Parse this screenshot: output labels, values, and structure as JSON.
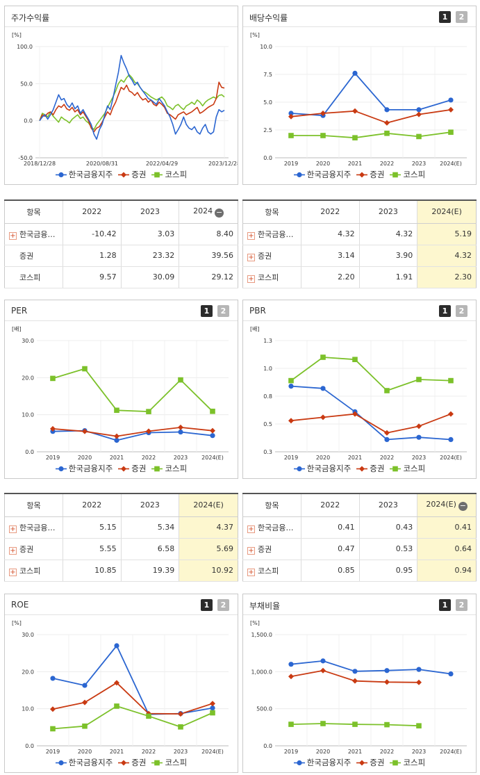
{
  "colors": {
    "company": "#2b66d1",
    "sector": "#c93a12",
    "kospi": "#7cc12a"
  },
  "legend": [
    "한국금융지주",
    "증권",
    "코스피"
  ],
  "panels": {
    "stock": {
      "title": "주가수익률",
      "unit": "[%]"
    },
    "dividend": {
      "title": "배당수익률",
      "unit": "[%]",
      "btn1": "1",
      "btn2": "2"
    },
    "per": {
      "title": "PER",
      "unit": "[배]",
      "btn1": "1",
      "btn2": "2"
    },
    "pbr": {
      "title": "PBR",
      "unit": "[배]",
      "btn1": "1",
      "btn2": "2"
    },
    "roe": {
      "title": "ROE",
      "unit": "[%]",
      "btn1": "1",
      "btn2": "2"
    },
    "debt": {
      "title": "부채비율",
      "unit": "[%]",
      "btn1": "1",
      "btn2": "2"
    }
  },
  "tables": {
    "stock": {
      "headers": [
        "항목",
        "2022",
        "2023",
        "2024"
      ],
      "rows": [
        {
          "name": "한국금융…",
          "plus": true,
          "v": [
            "-10.42",
            "3.03",
            "8.40"
          ]
        },
        {
          "name": "증권",
          "plus": false,
          "v": [
            "1.28",
            "23.32",
            "39.56"
          ]
        },
        {
          "name": "코스피",
          "plus": false,
          "v": [
            "9.57",
            "30.09",
            "29.12"
          ]
        }
      ]
    },
    "dividend": {
      "headers": [
        "항목",
        "2022",
        "2023",
        "2024(E)"
      ],
      "rows": [
        {
          "name": "한국금융…",
          "plus": true,
          "v": [
            "4.32",
            "4.32",
            "5.19"
          ]
        },
        {
          "name": "증권",
          "plus": true,
          "v": [
            "3.14",
            "3.90",
            "4.32"
          ]
        },
        {
          "name": "코스피",
          "plus": true,
          "v": [
            "2.20",
            "1.91",
            "2.30"
          ]
        }
      ]
    },
    "per": {
      "headers": [
        "항목",
        "2022",
        "2023",
        "2024(E)"
      ],
      "rows": [
        {
          "name": "한국금융…",
          "plus": true,
          "v": [
            "5.15",
            "5.34",
            "4.37"
          ]
        },
        {
          "name": "증권",
          "plus": true,
          "v": [
            "5.55",
            "6.58",
            "5.69"
          ]
        },
        {
          "name": "코스피",
          "plus": true,
          "v": [
            "10.85",
            "19.39",
            "10.92"
          ]
        }
      ]
    },
    "pbr": {
      "headers": [
        "항목",
        "2022",
        "2023",
        "2024(E)"
      ],
      "rows": [
        {
          "name": "한국금융…",
          "plus": true,
          "v": [
            "0.41",
            "0.43",
            "0.41"
          ]
        },
        {
          "name": "증권",
          "plus": true,
          "v": [
            "0.47",
            "0.53",
            "0.64"
          ]
        },
        {
          "name": "코스피",
          "plus": true,
          "v": [
            "0.85",
            "0.95",
            "0.94"
          ]
        }
      ]
    }
  },
  "chart_data": [
    {
      "id": "stock",
      "type": "line",
      "xticks": [
        "2018/12/28",
        "2020/08/31",
        "2022/04/29",
        "2023/12/28"
      ],
      "ylim": [
        -50,
        100
      ],
      "yticks": [
        "100.0",
        "50.0",
        "0.0",
        "-50.0"
      ],
      "series": [
        {
          "name": "한국금융지주",
          "values": [
            0,
            5,
            8,
            2,
            8,
            15,
            25,
            35,
            28,
            30,
            22,
            18,
            24,
            16,
            20,
            10,
            15,
            8,
            2,
            -5,
            -18,
            -25,
            -12,
            -5,
            8,
            20,
            15,
            30,
            48,
            65,
            88,
            78,
            70,
            60,
            55,
            48,
            52,
            45,
            40,
            35,
            30,
            28,
            25,
            22,
            30,
            25,
            20,
            12,
            5,
            -5,
            -18,
            -12,
            -5,
            5,
            -5,
            -10,
            -12,
            -8,
            -15,
            -18,
            -10,
            -5,
            -15,
            -18,
            -15,
            5,
            15,
            12,
            14
          ]
        },
        {
          "name": "증권",
          "values": [
            0,
            8,
            6,
            10,
            12,
            8,
            15,
            20,
            18,
            22,
            16,
            14,
            18,
            12,
            15,
            8,
            12,
            6,
            0,
            -10,
            -15,
            -10,
            -8,
            -2,
            5,
            12,
            8,
            18,
            25,
            35,
            45,
            42,
            48,
            40,
            38,
            34,
            38,
            32,
            28,
            30,
            25,
            28,
            22,
            20,
            25,
            22,
            18,
            10,
            8,
            5,
            2,
            8,
            10,
            12,
            8,
            10,
            12,
            15,
            18,
            10,
            12,
            15,
            18,
            20,
            22,
            30,
            52,
            45,
            44
          ]
        },
        {
          "name": "코스피",
          "values": [
            0,
            10,
            8,
            5,
            12,
            6,
            2,
            -2,
            5,
            2,
            0,
            -3,
            2,
            5,
            8,
            3,
            5,
            0,
            -3,
            -8,
            -12,
            -5,
            0,
            5,
            10,
            18,
            25,
            32,
            40,
            50,
            55,
            52,
            58,
            62,
            58,
            52,
            50,
            45,
            40,
            38,
            35,
            32,
            30,
            28,
            30,
            32,
            28,
            20,
            18,
            15,
            20,
            22,
            18,
            15,
            20,
            22,
            25,
            22,
            28,
            25,
            20,
            25,
            28,
            30,
            32,
            30,
            34,
            35,
            32
          ]
        }
      ]
    },
    {
      "id": "dividend",
      "type": "line",
      "categories": [
        "2019",
        "2020",
        "2021",
        "2022",
        "2023",
        "2024(E)"
      ],
      "ylim": [
        0,
        10
      ],
      "yticks": [
        "10.0",
        "7.5",
        "5.0",
        "2.5",
        "0.0"
      ],
      "series": [
        {
          "name": "한국금융지주",
          "values": [
            4.0,
            3.8,
            7.6,
            4.32,
            4.32,
            5.19
          ]
        },
        {
          "name": "증권",
          "values": [
            3.7,
            4.0,
            4.2,
            3.14,
            3.9,
            4.32
          ]
        },
        {
          "name": "코스피",
          "values": [
            2.0,
            2.0,
            1.8,
            2.2,
            1.91,
            2.3
          ]
        }
      ]
    },
    {
      "id": "per",
      "type": "line",
      "categories": [
        "2019",
        "2020",
        "2021",
        "2022",
        "2023",
        "2024(E)"
      ],
      "ylim": [
        0,
        30
      ],
      "yticks": [
        "30.0",
        "20.0",
        "10.0",
        "0.0"
      ],
      "series": [
        {
          "name": "한국금융지주",
          "values": [
            5.5,
            5.7,
            3.1,
            5.15,
            5.34,
            4.37
          ]
        },
        {
          "name": "증권",
          "values": [
            6.2,
            5.5,
            4.2,
            5.55,
            6.58,
            5.69
          ]
        },
        {
          "name": "코스피",
          "values": [
            19.8,
            22.4,
            11.2,
            10.85,
            19.39,
            10.92
          ]
        }
      ]
    },
    {
      "id": "pbr",
      "type": "line",
      "categories": [
        "2019",
        "2020",
        "2021",
        "2022",
        "2023",
        "2024(E)"
      ],
      "ylim": [
        0.3,
        1.3
      ],
      "yticks": [
        "1.3",
        "1.0",
        "0.8",
        "0.5",
        "0.3"
      ],
      "series": [
        {
          "name": "한국금융지주",
          "values": [
            0.89,
            0.87,
            0.66,
            0.41,
            0.43,
            0.41
          ]
        },
        {
          "name": "증권",
          "values": [
            0.58,
            0.61,
            0.64,
            0.47,
            0.53,
            0.64
          ]
        },
        {
          "name": "코스피",
          "values": [
            0.94,
            1.15,
            1.13,
            0.85,
            0.95,
            0.94
          ]
        }
      ]
    },
    {
      "id": "roe",
      "type": "line",
      "categories": [
        "2019",
        "2020",
        "2021",
        "2022",
        "2023",
        "2024(E)"
      ],
      "ylim": [
        0,
        30
      ],
      "yticks": [
        "30.0",
        "20.0",
        "10.0",
        "0.0"
      ],
      "series": [
        {
          "name": "한국금융지주",
          "values": [
            18.2,
            16.3,
            27.0,
            8.5,
            8.7,
            10.2
          ]
        },
        {
          "name": "증권",
          "values": [
            9.9,
            11.7,
            17.0,
            8.7,
            8.6,
            11.4
          ]
        },
        {
          "name": "코스피",
          "values": [
            4.6,
            5.3,
            10.7,
            8.0,
            5.1,
            8.9
          ]
        }
      ]
    },
    {
      "id": "debt",
      "type": "line",
      "categories": [
        "2019",
        "2020",
        "2021",
        "2022",
        "2023",
        "2024(E)"
      ],
      "ylim": [
        0,
        1500
      ],
      "yticks": [
        "1,500.0",
        "1,000.0",
        "500.0",
        "0.0"
      ],
      "series": [
        {
          "name": "한국금융지주",
          "values": [
            1100,
            1145,
            1005,
            1015,
            1030,
            970
          ]
        },
        {
          "name": "증권",
          "values": [
            935,
            1015,
            875,
            860,
            855,
            null
          ]
        },
        {
          "name": "코스피",
          "values": [
            290,
            300,
            290,
            285,
            270,
            null
          ]
        }
      ]
    }
  ]
}
